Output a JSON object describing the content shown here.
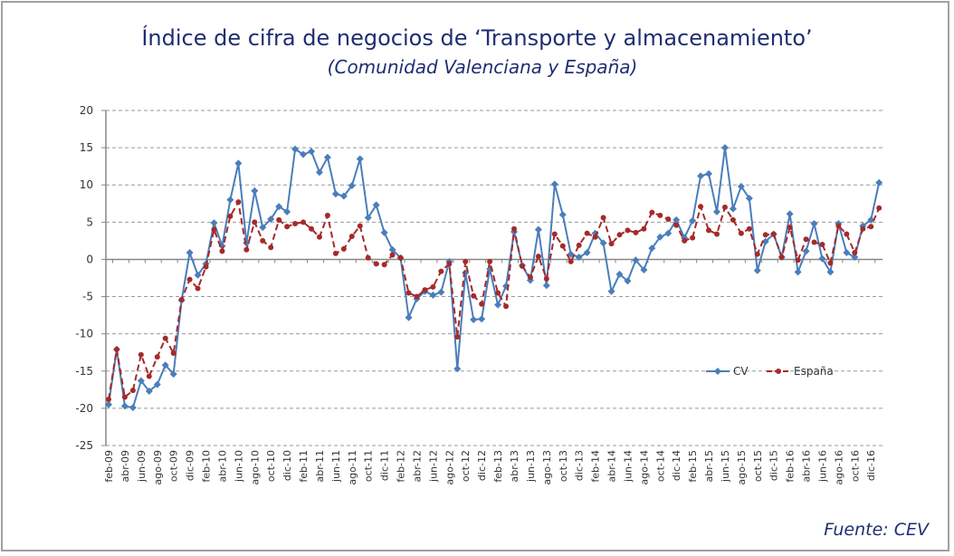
{
  "title": "Índice de cifra de negocios de ‘Transporte y almacenamiento’",
  "subtitle": "(Comunidad Valenciana y España)",
  "source": "Fuente: CEV",
  "chart_data": {
    "type": "line",
    "title": "Índice de cifra de negocios de ‘Transporte y almacenamiento’",
    "subtitle": "(Comunidad Valenciana y España)",
    "xlabel": "",
    "ylabel": "",
    "ylim": [
      -25,
      20
    ],
    "yticks": [
      20,
      15,
      10,
      5,
      0,
      -5,
      -10,
      -15,
      -20,
      -25
    ],
    "grid": true,
    "legend_position": "right-middle",
    "x_first": "feb-09",
    "x_last": "ene-17",
    "xtick_labels": [
      "feb-09",
      "abr-09",
      "jun-09",
      "ago-09",
      "oct-09",
      "dic-09",
      "feb-10",
      "abr-10",
      "jun-10",
      "ago-10",
      "oct-10",
      "dic-10",
      "feb-11",
      "abr-11",
      "jun-11",
      "ago-11",
      "oct-11",
      "dic-11",
      "feb-12",
      "abr-12",
      "jun-12",
      "ago-12",
      "oct-12",
      "dic-12",
      "feb-13",
      "abr-13",
      "jun-13",
      "ago-13",
      "oct-13",
      "dic-13",
      "feb-14",
      "abr-14",
      "jun-14",
      "ago-14",
      "oct-14",
      "dic-14",
      "feb-15",
      "abr-15",
      "jun-15",
      "ago-15",
      "oct-15",
      "dic-15",
      "feb-16",
      "abr-16",
      "jun-16",
      "ago-16",
      "oct-16",
      "dic-16"
    ],
    "series": [
      {
        "name": "CV",
        "color": "#4a7ebb",
        "style": "solid",
        "marker": "diamond",
        "values": [
          -19.5,
          -12.1,
          -19.7,
          -19.9,
          -16.3,
          -17.7,
          -16.8,
          -14.2,
          -15.4,
          -5.5,
          0.9,
          -2.1,
          -0.6,
          4.9,
          1.8,
          8.0,
          12.9,
          2.2,
          9.2,
          4.3,
          5.4,
          7.1,
          6.4,
          14.8,
          14.1,
          14.5,
          11.7,
          13.7,
          8.8,
          8.5,
          9.9,
          13.5,
          5.6,
          7.3,
          3.6,
          1.3,
          0.2,
          -7.8,
          -5.3,
          -4.3,
          -4.8,
          -4.4,
          -0.3,
          -14.7,
          -1.8,
          -8.1,
          -8.0,
          -1.3,
          -6.1,
          -3.6,
          3.7,
          -0.8,
          -2.8,
          4.0,
          -3.5,
          10.1,
          6.0,
          0.7,
          0.3,
          0.9,
          3.5,
          2.2,
          -4.3,
          -2.0,
          -2.9,
          -0.1,
          -1.4,
          1.5,
          3.0,
          3.5,
          5.3,
          2.9,
          5.2,
          11.2,
          11.5,
          6.4,
          15.0,
          6.8,
          9.8,
          8.2,
          -1.5,
          2.4,
          3.4,
          0.3,
          6.1,
          -1.7,
          1.1,
          4.8,
          0.1,
          -1.7,
          4.8,
          0.9,
          0.3,
          4.5,
          5.3,
          10.3
        ]
      },
      {
        "name": "España",
        "color": "#a52a2a",
        "style": "dashed",
        "marker": "circle",
        "values": [
          -18.8,
          -12.1,
          -18.5,
          -17.6,
          -12.8,
          -15.7,
          -13.1,
          -10.6,
          -12.6,
          -5.4,
          -2.7,
          -3.9,
          -1.0,
          4.0,
          1.1,
          5.8,
          7.7,
          1.3,
          5.0,
          2.5,
          1.6,
          5.3,
          4.4,
          4.8,
          5.0,
          4.1,
          3.0,
          5.9,
          0.8,
          1.4,
          3.1,
          4.5,
          0.2,
          -0.6,
          -0.7,
          0.6,
          0.2,
          -4.5,
          -5.0,
          -4.1,
          -3.7,
          -1.6,
          -0.6,
          -10.4,
          -0.3,
          -4.9,
          -6.0,
          -0.3,
          -4.5,
          -6.3,
          4.1,
          -0.9,
          -2.4,
          0.4,
          -2.6,
          3.4,
          1.8,
          -0.3,
          1.9,
          3.5,
          3.0,
          5.6,
          2.1,
          3.3,
          3.9,
          3.6,
          4.1,
          6.3,
          5.9,
          5.4,
          4.6,
          2.5,
          2.9,
          7.1,
          3.9,
          3.4,
          7.0,
          5.3,
          3.5,
          4.1,
          0.7,
          3.3,
          3.4,
          0.3,
          4.3,
          -0.1,
          2.7,
          2.3,
          2.0,
          -0.5,
          4.5,
          3.4,
          0.9,
          4.1,
          4.4,
          6.9
        ]
      }
    ]
  }
}
